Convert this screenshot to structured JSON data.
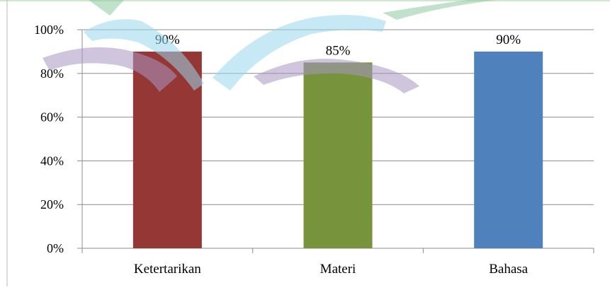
{
  "chart_data": {
    "type": "bar",
    "categories": [
      "Ketertarikan",
      "Materi",
      "Bahasa"
    ],
    "values": [
      90,
      85,
      90
    ],
    "data_labels": [
      "90%",
      "85%",
      "90%"
    ],
    "bar_colors": [
      "#953735",
      "#77933c",
      "#4f81bd"
    ],
    "ylim": [
      0,
      100
    ],
    "y_ticks": [
      0,
      20,
      40,
      60,
      80,
      100
    ],
    "y_tick_labels": [
      "0%",
      "20%",
      "40%",
      "60%",
      "80%",
      "100%"
    ],
    "grid": true,
    "legend": "none"
  },
  "watermark": {
    "colors": [
      "#9ad8ee",
      "#a898c4",
      "#8fc9a0"
    ]
  }
}
